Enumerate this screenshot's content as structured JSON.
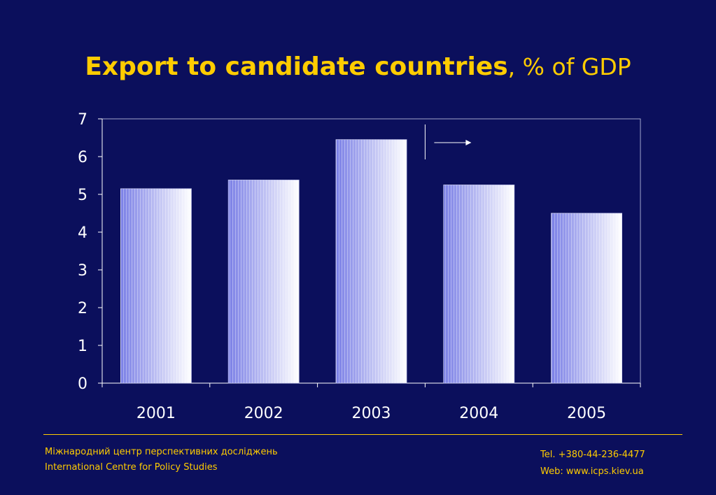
{
  "slide": {
    "title_main": "Export to candidate countries",
    "title_sub": ", % of GDP"
  },
  "chart_data": {
    "type": "bar",
    "categories": [
      "2001",
      "2002",
      "2003",
      "2004",
      "2005"
    ],
    "values": [
      5.15,
      5.38,
      6.45,
      5.25,
      4.5
    ],
    "ylim": [
      0,
      7
    ],
    "yticks": [
      "0",
      "1",
      "2",
      "3",
      "4",
      "5",
      "6",
      "7"
    ],
    "title": "",
    "xlabel": "",
    "ylabel": "",
    "grid": false,
    "bar_fill": [
      "#7a7fe6",
      "#ffffff"
    ],
    "annotation": "arrow marker between 2003 and 2004 pointing right"
  },
  "footer": {
    "org_ua": "Міжнародний центр перспективних досліджень",
    "org_en": "International Centre for Policy Studies",
    "tel": "Tel. +380-44-236-4477",
    "web": "Web: www.icps.kiev.ua"
  },
  "colors": {
    "background": "#0b0f5c",
    "accent": "#ffcc00",
    "axis": "#ffffff"
  }
}
